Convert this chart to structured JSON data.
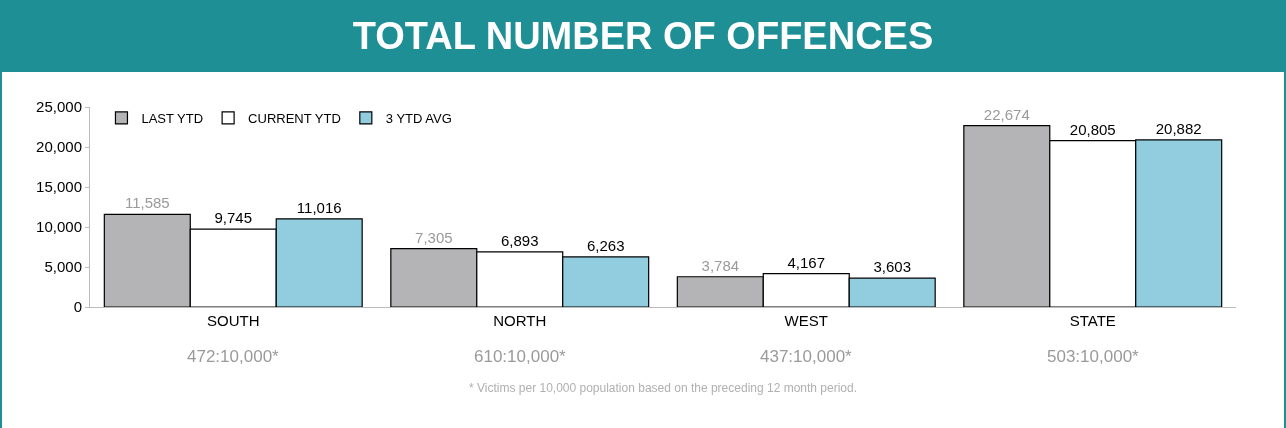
{
  "chart_data": {
    "type": "bar",
    "title": "TOTAL NUMBER OF OFFENCES",
    "categories": [
      "SOUTH",
      "NORTH",
      "WEST",
      "STATE"
    ],
    "series": [
      {
        "name": "LAST YTD",
        "color": "#b4b4b6",
        "values": [
          11585,
          7305,
          3784,
          22674
        ],
        "value_labels": [
          "11,585",
          "7,305",
          "3,784",
          "22,674"
        ]
      },
      {
        "name": "CURRENT YTD",
        "color": "#ffffff",
        "values": [
          9745,
          6893,
          4167,
          20805
        ],
        "value_labels": [
          "9,745",
          "6,893",
          "4,167",
          "20,805"
        ]
      },
      {
        "name": "3 YTD AVG",
        "color": "#92cddf",
        "values": [
          11016,
          6263,
          3603,
          20882
        ],
        "value_labels": [
          "11,016",
          "6,263",
          "3,603",
          "20,882"
        ]
      }
    ],
    "ylim": [
      0,
      25000
    ],
    "yticks": [
      {
        "value": 0,
        "label": "0"
      },
      {
        "value": 5000,
        "label": "5,000"
      },
      {
        "value": 10000,
        "label": "10,000"
      },
      {
        "value": 15000,
        "label": "15,000"
      },
      {
        "value": 20000,
        "label": "20,000"
      },
      {
        "value": 25000,
        "label": "25,000"
      }
    ],
    "grid": false,
    "legend": "top left",
    "annotations": [
      "472:10,000*",
      "610:10,000*",
      "437:10,000*",
      "503:10,000*",
      "* Victims per 10,000 population based on the preceding 12 month period."
    ]
  }
}
